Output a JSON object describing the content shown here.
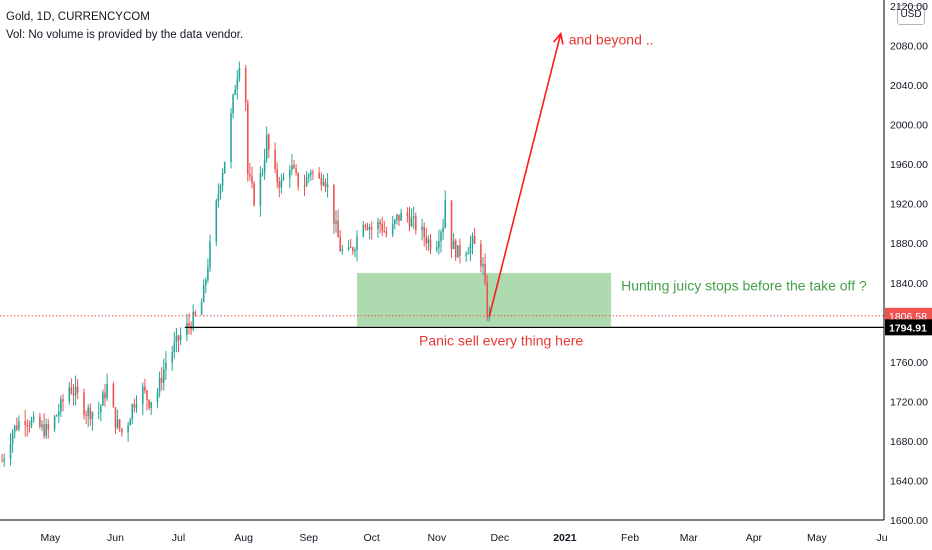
{
  "header": {
    "symbol_line": "Gold, 1D, CURRENCYCOM",
    "volume_note": "Vol: No volume is provided by the data vendor."
  },
  "currency_badge": "USD",
  "chart_data": {
    "type": "candlestick",
    "ylim": [
      1600,
      2120
    ],
    "y_ticks": [
      "2120.00",
      "2080.00",
      "2040.00",
      "2000.00",
      "1960.00",
      "1920.00",
      "1880.00",
      "1840.00",
      "1800.00",
      "1760.00",
      "1720.00",
      "1680.00",
      "1640.00",
      "1600.00"
    ],
    "y_tick_values": [
      2120,
      2080,
      2040,
      2000,
      1960,
      1920,
      1880,
      1840,
      1800,
      1760,
      1720,
      1680,
      1640,
      1600
    ],
    "x_ticks": [
      {
        "label": "May",
        "day": 47
      },
      {
        "label": "Jun",
        "day": 78
      },
      {
        "label": "Jul",
        "day": 108
      },
      {
        "label": "Aug",
        "day": 139
      },
      {
        "label": "Sep",
        "day": 170
      },
      {
        "label": "Oct",
        "day": 200
      },
      {
        "label": "Nov",
        "day": 231
      },
      {
        "label": "Dec",
        "day": 261
      },
      {
        "label": "2021",
        "day": 292
      },
      {
        "label": "Feb",
        "day": 323
      },
      {
        "label": "Mar",
        "day": 351
      },
      {
        "label": "Apr",
        "day": 382
      },
      {
        "label": "May",
        "day": 412
      },
      {
        "label": "Ju",
        "day": 443
      }
    ],
    "x_range_days": [
      23,
      446
    ],
    "price_path": [
      [
        24,
        1660
      ],
      [
        29,
        1690
      ],
      [
        34,
        1705
      ],
      [
        40,
        1695
      ],
      [
        46,
        1690
      ],
      [
        52,
        1715
      ],
      [
        56,
        1735
      ],
      [
        60,
        1725
      ],
      [
        64,
        1710
      ],
      [
        70,
        1710
      ],
      [
        74,
        1735
      ],
      [
        78,
        1700
      ],
      [
        82,
        1685
      ],
      [
        86,
        1715
      ],
      [
        90,
        1735
      ],
      [
        94,
        1720
      ],
      [
        98,
        1730
      ],
      [
        102,
        1760
      ],
      [
        106,
        1775
      ],
      [
        110,
        1790
      ],
      [
        114,
        1800
      ],
      [
        118,
        1810
      ],
      [
        120,
        1830
      ],
      [
        124,
        1890
      ],
      [
        128,
        1945
      ],
      [
        131,
        1975
      ],
      [
        135,
        2040
      ],
      [
        137,
        2065
      ],
      [
        140,
        2025
      ],
      [
        141,
        1950
      ],
      [
        144,
        1925
      ],
      [
        148,
        1955
      ],
      [
        150,
        1985
      ],
      [
        153,
        1950
      ],
      [
        157,
        1940
      ],
      [
        161,
        1960
      ],
      [
        164,
        1945
      ],
      [
        167,
        1935
      ],
      [
        171,
        1955
      ],
      [
        174,
        1940
      ],
      [
        177,
        1950
      ],
      [
        180,
        1930
      ],
      [
        182,
        1905
      ],
      [
        185,
        1875
      ],
      [
        188,
        1865
      ],
      [
        192,
        1880
      ],
      [
        196,
        1905
      ],
      [
        200,
        1895
      ],
      [
        204,
        1900
      ],
      [
        208,
        1885
      ],
      [
        212,
        1905
      ],
      [
        216,
        1910
      ],
      [
        220,
        1900
      ],
      [
        224,
        1890
      ],
      [
        228,
        1880
      ],
      [
        230,
        1875
      ],
      [
        232,
        1890
      ],
      [
        234,
        1900
      ],
      [
        236,
        1950
      ],
      [
        238,
        1880
      ],
      [
        241,
        1870
      ],
      [
        245,
        1875
      ],
      [
        248,
        1880
      ],
      [
        251,
        1870
      ],
      [
        253,
        1855
      ],
      [
        255,
        1810
      ],
      [
        256,
        1806.58
      ]
    ],
    "last_price": 1806.58,
    "last_price_label": "1806.58",
    "horizontal_line": {
      "value": 1794.91,
      "label": "1794.91",
      "from_day": 111
    },
    "zone": {
      "from_day": 193,
      "to_day": 314,
      "low": 1796,
      "high": 1850
    },
    "arrow": {
      "from_day": 256,
      "from_price": 1806,
      "to_day": 290,
      "to_price": 2092
    },
    "annotations": {
      "arrow_text": "and beyond ..",
      "zone_text": "Hunting juicy stops before the take off ?",
      "panic_text": "Panic sell every thing here"
    },
    "colors": {
      "up": "#26a69a",
      "down": "#ef5350",
      "last_price": "#ef5350",
      "line": "#000000",
      "zone": "#a5d6a7",
      "annotation_red": "#e53935",
      "annotation_green": "#43a047",
      "arrow": "#ff1a1a"
    }
  }
}
